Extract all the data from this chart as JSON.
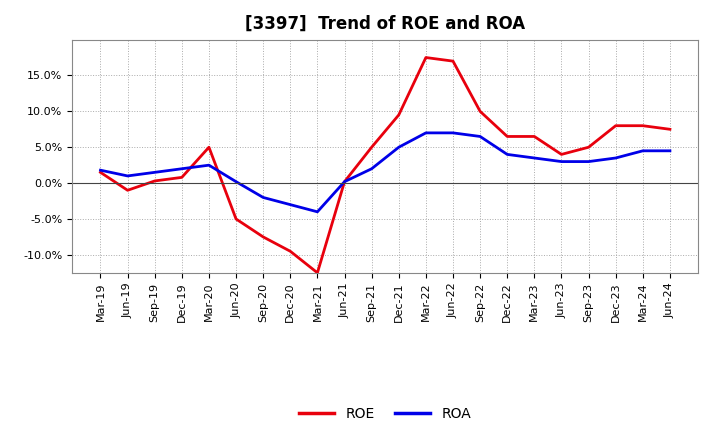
{
  "title": "[3397]  Trend of ROE and ROA",
  "x_labels": [
    "Mar-19",
    "Jun-19",
    "Sep-19",
    "Dec-19",
    "Mar-20",
    "Jun-20",
    "Sep-20",
    "Dec-20",
    "Mar-21",
    "Jun-21",
    "Sep-21",
    "Dec-21",
    "Mar-22",
    "Jun-22",
    "Sep-22",
    "Dec-22",
    "Mar-23",
    "Jun-23",
    "Sep-23",
    "Dec-23",
    "Mar-24",
    "Jun-24"
  ],
  "ROE": [
    1.5,
    -1.0,
    0.3,
    0.8,
    5.0,
    -5.0,
    -7.5,
    -9.5,
    -12.5,
    0.2,
    5.0,
    9.5,
    17.5,
    17.0,
    10.0,
    6.5,
    6.5,
    4.0,
    5.0,
    8.0,
    8.0,
    7.5
  ],
  "ROA": [
    1.8,
    1.0,
    1.5,
    2.0,
    2.5,
    0.2,
    -2.0,
    -3.0,
    -4.0,
    0.2,
    2.0,
    5.0,
    7.0,
    7.0,
    6.5,
    4.0,
    3.5,
    3.0,
    3.0,
    3.5,
    4.5,
    4.5
  ],
  "ROE_color": "#e8000d",
  "ROA_color": "#0000e8",
  "ylim": [
    -12.5,
    20.0
  ],
  "yticks": [
    -10.0,
    -5.0,
    0.0,
    5.0,
    10.0,
    15.0
  ],
  "background_color": "#ffffff",
  "plot_bg_color": "#ffffff",
  "grid_color": "#aaaaaa",
  "title_fontsize": 12,
  "tick_fontsize": 8,
  "legend_labels": [
    "ROE",
    "ROA"
  ],
  "linewidth": 2.0
}
